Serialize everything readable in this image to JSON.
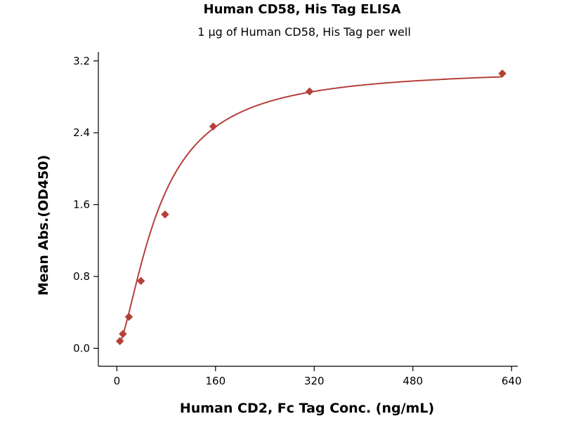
{
  "chart_data": {
    "type": "scatter",
    "title": "Human CD58, His Tag ELISA",
    "subtitle": "1 μg of Human CD58, His Tag per well",
    "xlabel": "Human CD2, Fc Tag Conc. (ng/mL)",
    "ylabel": "Mean Abs.(OD450)",
    "xlim": [
      -30,
      650
    ],
    "ylim": [
      -0.2,
      3.3
    ],
    "xticks": [
      0,
      160,
      320,
      480,
      640
    ],
    "yticks": [
      0.0,
      0.8,
      1.6,
      2.4,
      3.2
    ],
    "xtick_labels": [
      "0",
      "160",
      "320",
      "480",
      "640"
    ],
    "ytick_labels": [
      "0.0",
      "0.8",
      "1.6",
      "2.4",
      "3.2"
    ],
    "grid": false,
    "series": [
      {
        "marker": "diamond",
        "color": "#b5403a",
        "points": [
          {
            "x": 4.88,
            "y": 0.08
          },
          {
            "x": 9.77,
            "y": 0.16
          },
          {
            "x": 19.53,
            "y": 0.35
          },
          {
            "x": 39.06,
            "y": 0.75
          },
          {
            "x": 78.13,
            "y": 1.49
          },
          {
            "x": 156.25,
            "y": 2.47
          },
          {
            "x": 312.5,
            "y": 2.86
          },
          {
            "x": 625,
            "y": 3.06
          }
        ],
        "fit": {
          "type": "4PL",
          "color": "#b5403a",
          "bottom": 0.0,
          "top": 3.12,
          "ec50": 68,
          "hill": 1.55
        }
      }
    ]
  }
}
